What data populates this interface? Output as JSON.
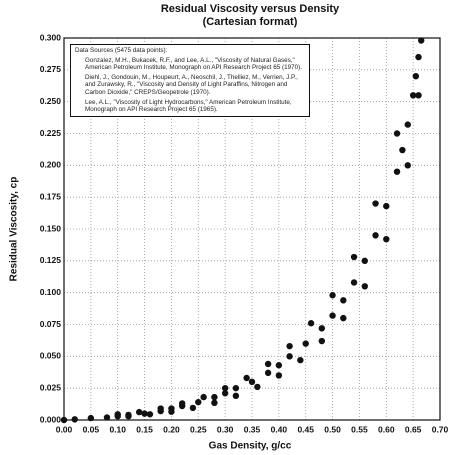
{
  "chart_data": {
    "type": "scatter",
    "title": "Residual Viscosity versus Density",
    "subtitle": "(Cartesian format)",
    "x_label": "Gas Density, g/cc",
    "y_label": "Residual Viscosity, cp",
    "annotation": {
      "heading": "Data Sources (5475 data points):",
      "lines": [
        "Gonzalez, M.H., Bukacek, R.F., and Lee, A.L., \"Viscosity of Natural Gases,\" American Petroleum Institute, Monograph on API Research Project 65 (1970).",
        "Diehl, J., Gondouin, M., Houpeurt, A., Neoschil, J., Thelliez, M., Verrien, J.P., and Zurawsky, R., \"Viscosity and Density of Light Paraffins, Nitrogen and Carbon Dioxide,\" CREPS/Geopetrole (1970).",
        "Lee, A.L., \"Viscosity of Light Hydrocarbons,\" American Petroleum Institute, Monograph on API Research Project 65 (1965)."
      ]
    },
    "grid": true,
    "color": "#111111",
    "xlim": [
      0,
      0.7
    ],
    "ylim": [
      0,
      0.3
    ],
    "xticks": [
      {
        "value": 0,
        "label": "0.00"
      },
      {
        "value": 0.05,
        "label": "0.05"
      },
      {
        "value": 0.1,
        "label": "0.10"
      },
      {
        "value": 0.15,
        "label": "0.15"
      },
      {
        "value": 0.2,
        "label": "0.20"
      },
      {
        "value": 0.25,
        "label": "0.25"
      },
      {
        "value": 0.3,
        "label": "0.30"
      },
      {
        "value": 0.35,
        "label": "0.35"
      },
      {
        "value": 0.4,
        "label": "0.40"
      },
      {
        "value": 0.45,
        "label": "0.45"
      },
      {
        "value": 0.5,
        "label": "0.50"
      },
      {
        "value": 0.55,
        "label": "0.55"
      },
      {
        "value": 0.6,
        "label": "0.60"
      },
      {
        "value": 0.65,
        "label": "0.65"
      },
      {
        "value": 0.7,
        "label": "0.70"
      }
    ],
    "yticks": [
      {
        "value": 0,
        "label": "0.000"
      },
      {
        "value": 0.025,
        "label": "0.025"
      },
      {
        "value": 0.05,
        "label": "0.050"
      },
      {
        "value": 0.075,
        "label": "0.075"
      },
      {
        "value": 0.1,
        "label": "0.100"
      },
      {
        "value": 0.125,
        "label": "0.125"
      },
      {
        "value": 0.15,
        "label": "0.150"
      },
      {
        "value": 0.175,
        "label": "0.175"
      },
      {
        "value": 0.2,
        "label": "0.200"
      },
      {
        "value": 0.225,
        "label": "0.225"
      },
      {
        "value": 0.25,
        "label": "0.250"
      },
      {
        "value": 0.275,
        "label": "0.275"
      },
      {
        "value": 0.3,
        "label": "0.300"
      }
    ],
    "x": [
      0.0,
      0.02,
      0.05,
      0.08,
      0.1,
      0.12,
      0.15,
      0.18,
      0.2,
      0.22,
      0.25,
      0.28,
      0.3,
      0.32,
      0.35,
      0.38,
      0.4,
      0.42,
      0.45,
      0.48,
      0.5,
      0.52,
      0.54,
      0.56,
      0.58,
      0.6,
      0.62,
      0.63,
      0.64,
      0.65,
      0.655,
      0.66,
      0.665,
      0.1,
      0.14,
      0.18,
      0.22,
      0.26,
      0.3,
      0.34,
      0.38,
      0.42,
      0.46,
      0.5,
      0.54,
      0.58,
      0.62,
      0.12,
      0.16,
      0.2,
      0.24,
      0.28,
      0.32,
      0.36,
      0.4,
      0.44,
      0.48,
      0.52,
      0.56,
      0.6,
      0.64,
      0.66
    ],
    "y": [
      0.0,
      0.0005,
      0.0015,
      0.002,
      0.003,
      0.004,
      0.005,
      0.007,
      0.009,
      0.011,
      0.014,
      0.018,
      0.021,
      0.025,
      0.03,
      0.037,
      0.043,
      0.05,
      0.06,
      0.072,
      0.082,
      0.094,
      0.108,
      0.125,
      0.145,
      0.168,
      0.195,
      0.212,
      0.232,
      0.255,
      0.27,
      0.285,
      0.298,
      0.0045,
      0.0062,
      0.009,
      0.013,
      0.018,
      0.025,
      0.033,
      0.044,
      0.058,
      0.076,
      0.098,
      0.128,
      0.17,
      0.225,
      0.003,
      0.0045,
      0.0065,
      0.0095,
      0.0135,
      0.019,
      0.026,
      0.035,
      0.047,
      0.062,
      0.08,
      0.105,
      0.142,
      0.2,
      0.255
    ]
  }
}
